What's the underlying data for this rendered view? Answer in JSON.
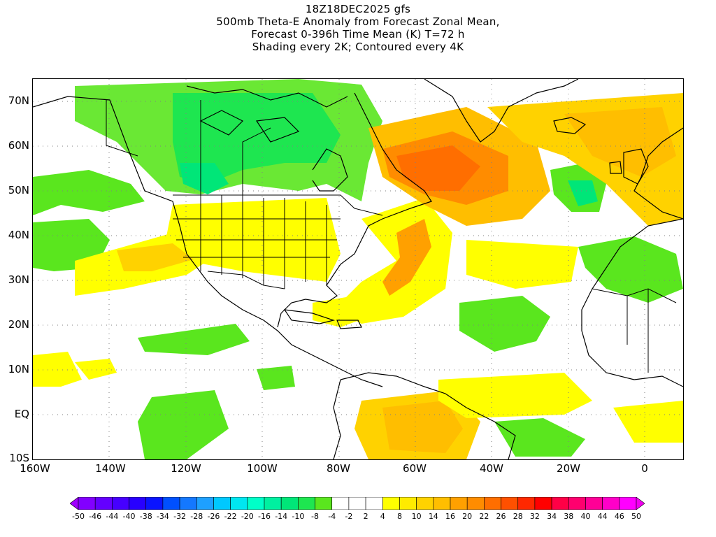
{
  "title": {
    "line1": "18Z18DEC2025 gfs",
    "line2": "500mb Theta-E Anomaly from Forecast Zonal Mean,",
    "line3": "Forecast 0-396h Time Mean (K) T=72 h",
    "line4": "Shading every 2K; Contoured every 4K"
  },
  "axes": {
    "latitude_labels": [
      "70N",
      "60N",
      "50N",
      "40N",
      "30N",
      "20N",
      "10N",
      "EQ",
      "10S"
    ],
    "longitude_labels": [
      "160W",
      "140W",
      "120W",
      "100W",
      "80W",
      "60W",
      "40W",
      "20W",
      "0"
    ]
  },
  "colorbar": {
    "labels": [
      "-50",
      "-46",
      "-44",
      "-40",
      "-38",
      "-34",
      "-32",
      "-28",
      "-26",
      "-22",
      "-20",
      "-16",
      "-14",
      "-10",
      "-8",
      "-4",
      "-2",
      "2",
      "4",
      "8",
      "10",
      "14",
      "16",
      "20",
      "22",
      "26",
      "28",
      "32",
      "34",
      "38",
      "40",
      "44",
      "46",
      "50"
    ],
    "colors": [
      "#a000ff",
      "#8200ff",
      "#6400ff",
      "#4600ff",
      "#2800ff",
      "#0a14ff",
      "#0050ff",
      "#1478ff",
      "#1ea0ff",
      "#00c8ff",
      "#00e6f0",
      "#00ffc8",
      "#00f0a0",
      "#00e678",
      "#1ee650",
      "#5ae61e",
      "#ffffff",
      "#ffffff",
      "#ffffff",
      "#ffff00",
      "#ffeb00",
      "#ffd200",
      "#ffbe00",
      "#ffa000",
      "#ff8c00",
      "#ff6e00",
      "#ff5000",
      "#ff2800",
      "#ff0000",
      "#ff0046",
      "#ff006e",
      "#ff0096",
      "#ff00c8",
      "#ff00ff",
      "#f000f0"
    ]
  },
  "map": {
    "region": "North America and Atlantic",
    "lat_range": [
      -10,
      75
    ],
    "lon_range": [
      -160,
      10
    ],
    "features": [
      "coastlines",
      "US state boundaries",
      "country borders",
      "dotted lat/lon grid"
    ]
  }
}
